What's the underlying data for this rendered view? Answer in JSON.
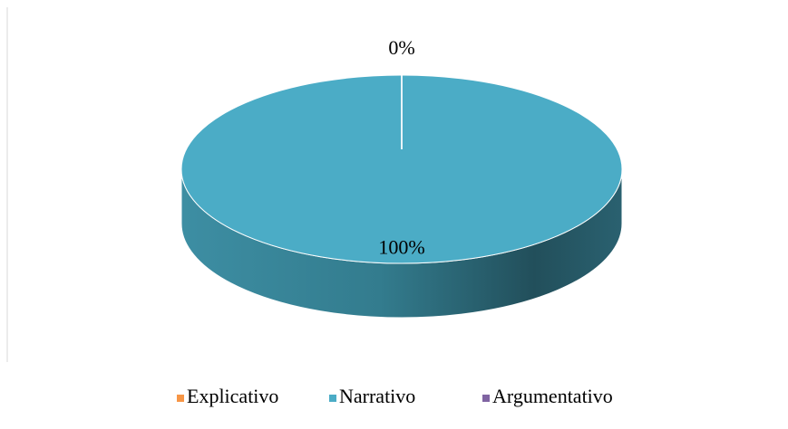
{
  "chart_data": {
    "type": "pie",
    "categories": [
      "Explicativo",
      "Narrativo",
      "Argumentativo"
    ],
    "values": [
      0,
      100,
      0
    ],
    "value_labels": [
      "0%",
      "100%",
      null
    ],
    "colors": [
      "#f79646",
      "#4bacc6",
      "#8064a2"
    ],
    "legend": "bottom"
  }
}
